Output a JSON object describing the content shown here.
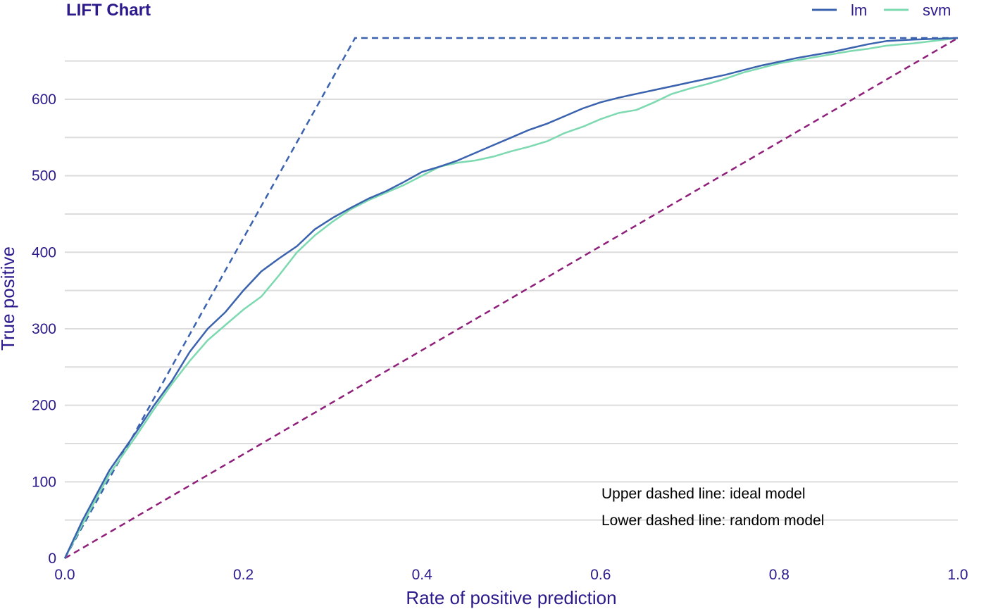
{
  "chart_data": {
    "type": "line",
    "title": "LIFT Chart",
    "xlabel": "Rate of positive prediction",
    "ylabel": "True positive",
    "xlim": [
      0,
      1
    ],
    "ylim": [
      0,
      680
    ],
    "x_ticks": [
      "0.0",
      "0.2",
      "0.4",
      "0.6",
      "0.8",
      "1.0"
    ],
    "x_tick_values": [
      0,
      0.2,
      0.4,
      0.6,
      0.8,
      1.0
    ],
    "y_ticks": [
      "0",
      "100",
      "200",
      "300",
      "400",
      "500",
      "600"
    ],
    "y_tick_values": [
      0,
      100,
      200,
      300,
      400,
      500,
      600
    ],
    "y_minor_gridlines": [
      50,
      150,
      250,
      350,
      450,
      550,
      650
    ],
    "grid": "horizontal",
    "legend_position": "top-right",
    "series": [
      {
        "name": "lm",
        "color": "#3a62ae",
        "x": [
          0,
          0.02,
          0.05,
          0.08,
          0.1,
          0.12,
          0.14,
          0.16,
          0.18,
          0.2,
          0.22,
          0.24,
          0.26,
          0.28,
          0.3,
          0.32,
          0.34,
          0.36,
          0.38,
          0.4,
          0.42,
          0.44,
          0.46,
          0.48,
          0.5,
          0.52,
          0.54,
          0.56,
          0.58,
          0.6,
          0.62,
          0.64,
          0.66,
          0.68,
          0.7,
          0.72,
          0.74,
          0.76,
          0.78,
          0.8,
          0.82,
          0.84,
          0.86,
          0.88,
          0.9,
          0.92,
          0.95,
          1.0
        ],
        "y": [
          0,
          50,
          115,
          165,
          200,
          232,
          270,
          300,
          322,
          350,
          375,
          392,
          408,
          430,
          445,
          458,
          470,
          480,
          492,
          505,
          512,
          520,
          530,
          540,
          550,
          560,
          568,
          578,
          588,
          596,
          602,
          607,
          612,
          617,
          622,
          627,
          632,
          638,
          644,
          649,
          654,
          658,
          662,
          667,
          672,
          676,
          678,
          680
        ]
      },
      {
        "name": "svm",
        "color": "#7cd9b0",
        "x": [
          0,
          0.02,
          0.05,
          0.08,
          0.1,
          0.12,
          0.14,
          0.16,
          0.18,
          0.2,
          0.22,
          0.24,
          0.26,
          0.28,
          0.3,
          0.32,
          0.34,
          0.36,
          0.38,
          0.4,
          0.42,
          0.44,
          0.46,
          0.48,
          0.5,
          0.52,
          0.54,
          0.56,
          0.58,
          0.6,
          0.62,
          0.64,
          0.66,
          0.68,
          0.7,
          0.72,
          0.74,
          0.76,
          0.78,
          0.8,
          0.82,
          0.84,
          0.86,
          0.88,
          0.9,
          0.92,
          0.95,
          1.0
        ],
        "y": [
          0,
          45,
          110,
          160,
          195,
          228,
          258,
          285,
          305,
          325,
          342,
          370,
          400,
          422,
          440,
          456,
          468,
          478,
          488,
          500,
          512,
          517,
          520,
          525,
          532,
          538,
          545,
          556,
          564,
          574,
          582,
          586,
          596,
          607,
          614,
          620,
          627,
          635,
          641,
          647,
          651,
          655,
          659,
          663,
          666,
          670,
          673,
          680
        ]
      }
    ],
    "reference_lines": [
      {
        "name": "ideal model",
        "style": "dashed",
        "color": "#3a62ae",
        "x": [
          0,
          0.325,
          1.0
        ],
        "y": [
          0,
          680,
          680
        ]
      },
      {
        "name": "random model",
        "style": "dashed",
        "color": "#8e1f7a",
        "x": [
          0,
          1.0
        ],
        "y": [
          0,
          680
        ]
      }
    ],
    "annotations": [
      "Upper dashed line: ideal model",
      "Lower dashed line: random model"
    ]
  },
  "colors": {
    "text_accent": "#2b1a8c",
    "grid": "#dcdcdc",
    "annotation_text": "#000000"
  }
}
